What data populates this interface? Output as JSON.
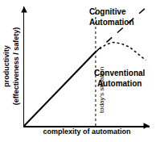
{
  "chart_data": {
    "type": "line",
    "xlabel": "complexity of automation",
    "ylabel": "productivity\n(effectiveness / safety)",
    "xlim": [
      0,
      10
    ],
    "ylim": [
      0,
      10
    ],
    "xticks": [],
    "yticks": [],
    "tick_labels": false,
    "grid": false,
    "color": "#000000",
    "series": [
      {
        "x": [
          0,
          5.7
        ],
        "values": [
          0,
          6.2
        ],
        "line_style": "solid"
      },
      {
        "name": "Cognitive Automation",
        "x": [
          5.7,
          9.7
        ],
        "values": [
          6.2,
          9.9
        ],
        "line_style": "dash"
      },
      {
        "name": "Conventional Automation",
        "x": [
          5.7,
          6.5,
          7.1,
          7.7,
          8.4,
          9.0,
          9.7
        ],
        "values": [
          6.2,
          6.8,
          7.0,
          6.9,
          6.6,
          6.1,
          5.5
        ],
        "line_style": "dot"
      }
    ],
    "annotations": [
      {
        "text": "today's situation",
        "x": 5.7
      }
    ]
  }
}
